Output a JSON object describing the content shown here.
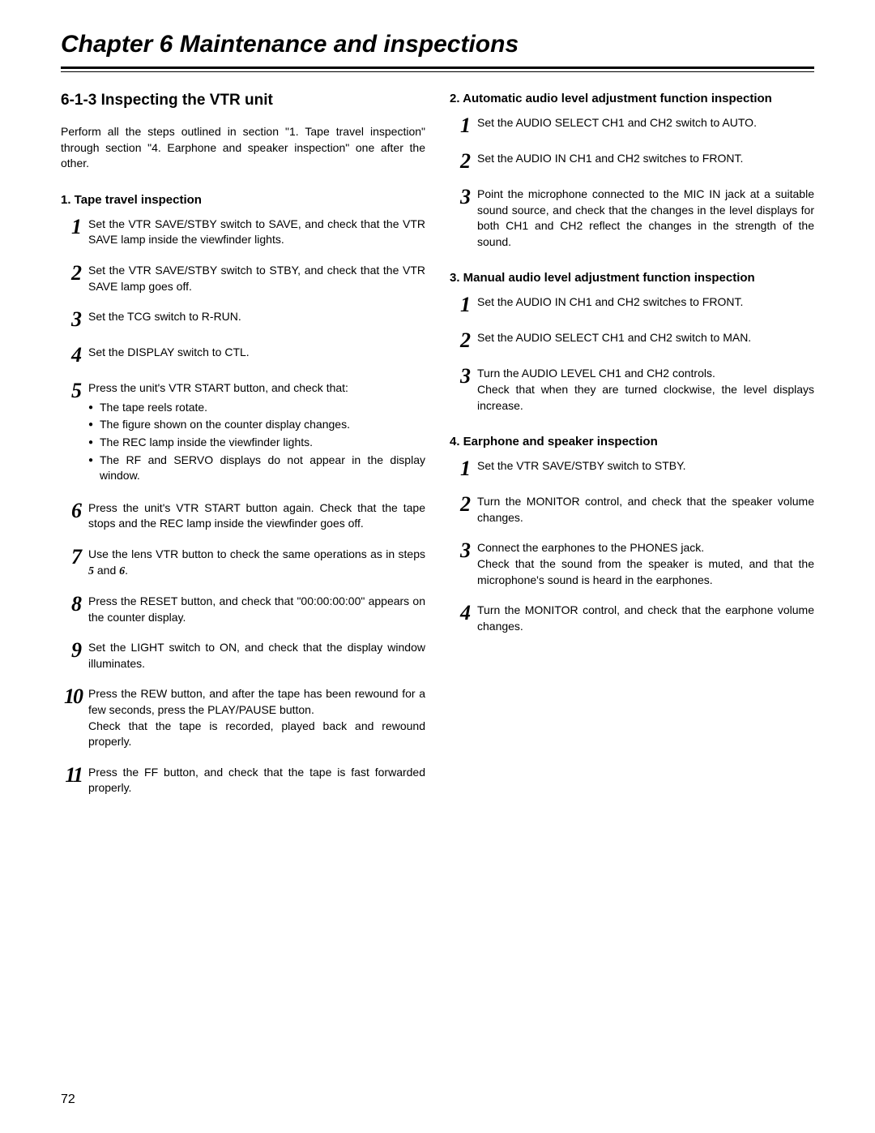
{
  "page_number": "72",
  "chapter_title": "Chapter 6  Maintenance and inspections",
  "left": {
    "section_heading": "6-1-3 Inspecting the VTR unit",
    "intro": "Perform all the steps outlined in section \"1. Tape travel inspection\" through section \"4. Earphone and speaker inspection\" one after the other.",
    "sub1_title": "1.  Tape travel inspection",
    "steps": {
      "s1": "Set the VTR SAVE/STBY switch to SAVE, and check that the VTR SAVE lamp inside the viewfinder lights.",
      "s2": "Set the VTR SAVE/STBY switch to STBY, and check that the VTR SAVE lamp goes off.",
      "s3": "Set the TCG switch to R-RUN.",
      "s4": "Set the DISPLAY switch to CTL.",
      "s5_lead": "Press the unit's VTR START button, and check that:",
      "s5_b1": "The tape reels rotate.",
      "s5_b2": "The figure shown on the counter display changes.",
      "s5_b3": "The REC lamp inside the viewfinder lights.",
      "s5_b4": "The RF and SERVO displays do not appear in the display window.",
      "s6": "Press the unit's VTR START button again. Check that the tape stops and the REC lamp inside the viewfinder goes off.",
      "s7_a": "Use the lens VTR button to check the same operations as in steps ",
      "s7_ref1": "5",
      "s7_mid": " and ",
      "s7_ref2": "6",
      "s7_end": ".",
      "s8": "Press the RESET button, and check that \"00:00:00:00\" appears on the counter display.",
      "s9": "Set the LIGHT switch to ON, and check that the display window illuminates.",
      "s10": "Press the REW button, and after the tape has been rewound for a few seconds, press the PLAY/PAUSE button.",
      "s10b": "Check that the tape is recorded, played back and rewound properly.",
      "s11": "Press the FF button, and check that the tape is fast forwarded properly."
    }
  },
  "right": {
    "sub2_title": "2.  Automatic audio level adjustment function inspection",
    "s2_1": "Set the AUDIO SELECT CH1 and CH2 switch to AUTO.",
    "s2_2": "Set the AUDIO IN CH1 and CH2 switches to FRONT.",
    "s2_3": "Point the microphone connected to the MIC IN jack at a suitable sound source, and check that the changes in the level displays for both CH1 and CH2 reflect the changes in the strength of the sound.",
    "sub3_title": "3.  Manual audio level adjustment function inspection",
    "s3_1": "Set the AUDIO IN CH1 and CH2 switches to FRONT.",
    "s3_2": "Set the AUDIO SELECT CH1 and CH2 switch to MAN.",
    "s3_3a": "Turn the AUDIO LEVEL CH1 and CH2 controls.",
    "s3_3b": "Check that when they are turned clockwise, the level displays increase.",
    "sub4_title": "4.  Earphone and speaker inspection",
    "s4_1": "Set the VTR SAVE/STBY switch to STBY.",
    "s4_2": "Turn the MONITOR control, and check that the speaker volume changes.",
    "s4_3a": "Connect the earphones to the PHONES jack.",
    "s4_3b": "Check that the sound from the speaker is muted, and that the microphone's sound is heard in the earphones.",
    "s4_4": "Turn the MONITOR control, and check that the earphone volume changes."
  }
}
